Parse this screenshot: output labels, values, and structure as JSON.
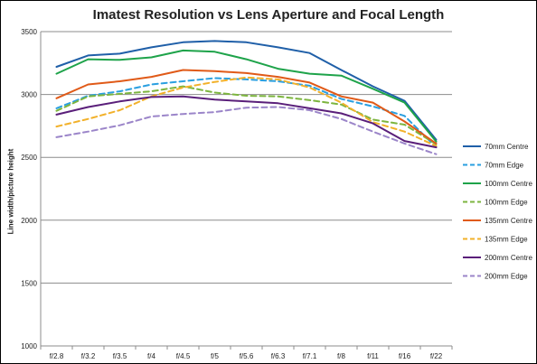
{
  "chart_data": {
    "type": "line",
    "title": "Imatest Resolution vs Lens Aperture and Focal Length",
    "xlabel": "",
    "ylabel": "Line width/picture height",
    "categories": [
      "f/2.8",
      "f/3.2",
      "f/3.5",
      "f/4",
      "f/4.5",
      "f/5",
      "f/5.6",
      "f/6.3",
      "f/7.1",
      "f/8",
      "f/11",
      "f/16",
      "f/22"
    ],
    "ylim": [
      1000,
      3500
    ],
    "yticks": [
      "1000",
      "1500",
      "2000",
      "2500",
      "3000",
      "3500"
    ],
    "grid": "horizontal",
    "legend_position": "right",
    "series": [
      {
        "name": "70mm Centre",
        "color": "#1f5fa8",
        "dash": false,
        "values": [
          3220,
          3310,
          3325,
          3375,
          3415,
          3425,
          3415,
          3375,
          3330,
          3195,
          3065,
          2950,
          2640
        ]
      },
      {
        "name": "70mm Edge",
        "color": "#2a9fe0",
        "dash": true,
        "values": [
          2890,
          2990,
          3025,
          3080,
          3105,
          3130,
          3120,
          3105,
          3070,
          2965,
          2905,
          2830,
          2580
        ]
      },
      {
        "name": "100mm Centre",
        "color": "#1ea34a",
        "dash": false,
        "values": [
          3165,
          3280,
          3275,
          3295,
          3350,
          3340,
          3280,
          3205,
          3165,
          3150,
          3045,
          2935,
          2625
        ]
      },
      {
        "name": "100mm Edge",
        "color": "#7db53f",
        "dash": true,
        "values": [
          2870,
          2985,
          3005,
          3025,
          3065,
          3015,
          2990,
          2985,
          2955,
          2920,
          2800,
          2760,
          2605
        ]
      },
      {
        "name": "135mm Centre",
        "color": "#e05a18",
        "dash": false,
        "values": [
          2970,
          3080,
          3105,
          3140,
          3195,
          3185,
          3170,
          3140,
          3095,
          2985,
          2935,
          2785,
          2610
        ]
      },
      {
        "name": "135mm Edge",
        "color": "#f2b12a",
        "dash": true,
        "values": [
          2745,
          2805,
          2875,
          2985,
          3055,
          3100,
          3135,
          3120,
          3055,
          2935,
          2780,
          2705,
          2590
        ]
      },
      {
        "name": "200mm Centre",
        "color": "#5a1f7a",
        "dash": false,
        "values": [
          2840,
          2900,
          2945,
          2980,
          2985,
          2960,
          2945,
          2930,
          2890,
          2850,
          2770,
          2630,
          2580
        ]
      },
      {
        "name": "200mm Edge",
        "color": "#9b85c9",
        "dash": true,
        "values": [
          2660,
          2705,
          2755,
          2825,
          2845,
          2860,
          2895,
          2900,
          2875,
          2805,
          2705,
          2610,
          2525
        ]
      }
    ]
  }
}
